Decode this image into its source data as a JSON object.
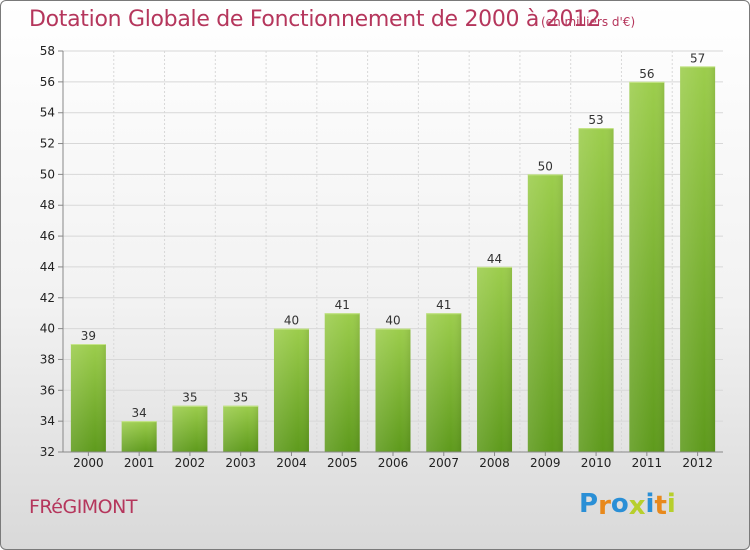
{
  "title": "Dotation Globale de Fonctionnement de 2000 à 2012",
  "unit_note": "(en milliers d'€)",
  "commune": "FRéGIMONT",
  "brand": {
    "letters": [
      "P",
      "r",
      "o",
      "x",
      "i",
      "t",
      "i"
    ],
    "colors": [
      "#2a8fd6",
      "#e8891c",
      "#2a8fd6",
      "#b7cf2c",
      "#2a8fd6",
      "#e8891c",
      "#b7cf2c"
    ]
  },
  "colors": {
    "bar_top": "#9ccd4c",
    "bar_bottom": "#5e9a1c",
    "title": "#b5365c"
  },
  "chart_data": {
    "type": "bar",
    "categories": [
      "2000",
      "2001",
      "2002",
      "2003",
      "2004",
      "2005",
      "2006",
      "2007",
      "2008",
      "2009",
      "2010",
      "2011",
      "2012"
    ],
    "values": [
      39,
      34,
      35,
      35,
      40,
      41,
      40,
      41,
      44,
      50,
      53,
      56,
      57
    ],
    "ylim": [
      32,
      58
    ],
    "yticks": [
      32,
      34,
      36,
      38,
      40,
      42,
      44,
      46,
      48,
      50,
      52,
      54,
      56,
      58
    ],
    "grid": true
  }
}
